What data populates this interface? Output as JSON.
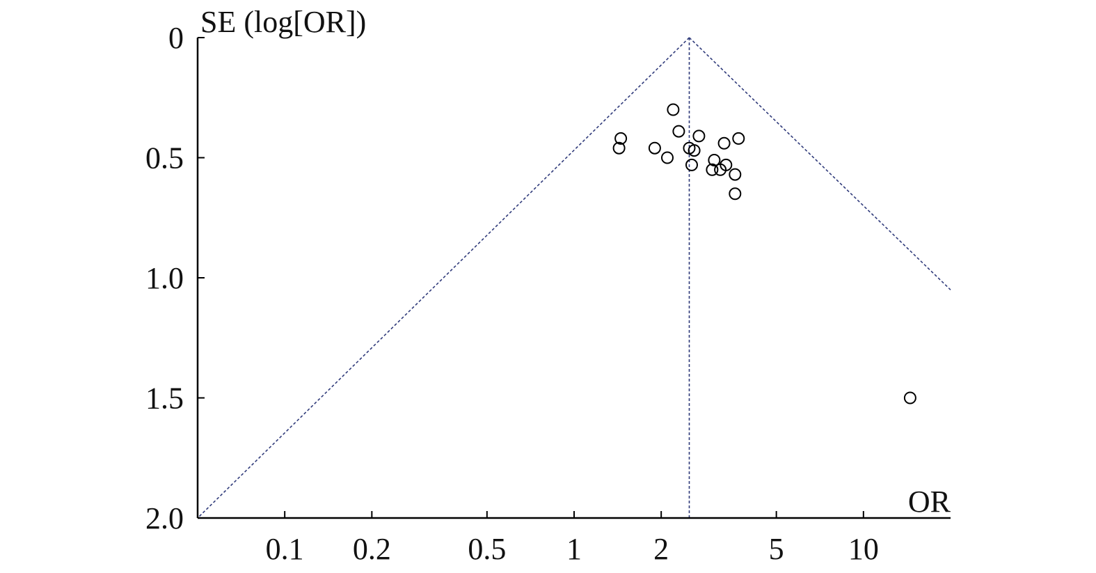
{
  "chart_data": {
    "type": "scatter",
    "title": "",
    "xlabel": "OR",
    "ylabel": "SE (log[OR])",
    "x_scale": "log",
    "y_inverted": true,
    "xlim": [
      0.05,
      20
    ],
    "ylim": [
      0,
      2.0
    ],
    "x_ticks": [
      {
        "value": 0.1,
        "label": "0.1"
      },
      {
        "value": 0.2,
        "label": "0.2"
      },
      {
        "value": 0.5,
        "label": "0.5"
      },
      {
        "value": 1,
        "label": "1"
      },
      {
        "value": 2,
        "label": "2"
      },
      {
        "value": 5,
        "label": "5"
      },
      {
        "value": 10,
        "label": "10"
      }
    ],
    "y_ticks": [
      {
        "value": 0,
        "label": "0"
      },
      {
        "value": 0.5,
        "label": "0.5"
      },
      {
        "value": 1.0,
        "label": "1.0"
      },
      {
        "value": 1.5,
        "label": "1.5"
      },
      {
        "value": 2.0,
        "label": "2.0"
      }
    ],
    "pooled_or": 2.5,
    "funnel_lines": [
      {
        "name": "upper-limit",
        "points": [
          [
            2.5,
            0
          ],
          [
            20,
            1.05
          ]
        ]
      },
      {
        "name": "lower-limit",
        "points": [
          [
            2.5,
            0
          ],
          [
            0.05,
            2.0
          ]
        ]
      },
      {
        "name": "pooled-estimate",
        "points": [
          [
            2.5,
            0
          ],
          [
            2.5,
            2.0
          ]
        ]
      }
    ],
    "points": [
      {
        "or": 2.2,
        "se": 0.3
      },
      {
        "or": 2.3,
        "se": 0.39
      },
      {
        "or": 1.45,
        "se": 0.42
      },
      {
        "or": 1.43,
        "se": 0.46
      },
      {
        "or": 1.9,
        "se": 0.46
      },
      {
        "or": 2.1,
        "se": 0.5
      },
      {
        "or": 2.5,
        "se": 0.46
      },
      {
        "or": 2.6,
        "se": 0.47
      },
      {
        "or": 2.55,
        "se": 0.53
      },
      {
        "or": 2.7,
        "se": 0.41
      },
      {
        "or": 3.3,
        "se": 0.44
      },
      {
        "or": 3.7,
        "se": 0.42
      },
      {
        "or": 3.05,
        "se": 0.51
      },
      {
        "or": 3.35,
        "se": 0.53
      },
      {
        "or": 3.0,
        "se": 0.55
      },
      {
        "or": 3.2,
        "se": 0.55
      },
      {
        "or": 3.6,
        "se": 0.57
      },
      {
        "or": 3.6,
        "se": 0.65
      },
      {
        "or": 14.5,
        "se": 1.5
      }
    ],
    "grid": false,
    "legend": "none"
  },
  "colors": {
    "axis": "#000000",
    "funnel": "#2f3a7a",
    "point": "#000000"
  }
}
